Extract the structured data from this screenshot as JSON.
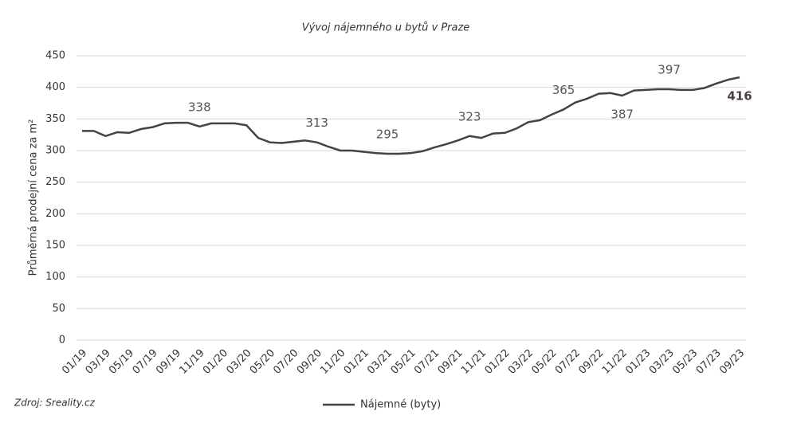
{
  "chart_data": {
    "type": "line",
    "title": "Vývoj nájemného u bytů v Praze",
    "y_label": "Průměrná prodejní cena za m²",
    "source": "Zdroj: Sreality.cz",
    "categories": [
      "01/19",
      null,
      "03/19",
      null,
      "05/19",
      null,
      "07/19",
      null,
      "09/19",
      null,
      "11/19",
      null,
      "01/20",
      null,
      "03/20",
      null,
      "05/20",
      null,
      "07/20",
      null,
      "09/20",
      null,
      "11/20",
      null,
      "01/21",
      null,
      "03/21",
      null,
      "05/21",
      null,
      "07/21",
      null,
      "09/21",
      null,
      "11/21",
      null,
      "01/22",
      null,
      "03/22",
      null,
      "05/22",
      null,
      "07/22",
      null,
      "09/22",
      null,
      "11/22",
      null,
      "01/23",
      null,
      "03/23",
      null,
      "05/23",
      null,
      "07/23",
      null,
      "09/23"
    ],
    "series": [
      {
        "name": "Nájemné (byty)",
        "color": "#4a3f45",
        "values": [
          331,
          331,
          323,
          329,
          328,
          334,
          337,
          343,
          344,
          344,
          338,
          343,
          343,
          343,
          340,
          320,
          313,
          312,
          314,
          316,
          313,
          306,
          300,
          300,
          298,
          296,
          295,
          295,
          296,
          299,
          305,
          310,
          316,
          323,
          320,
          327,
          328,
          335,
          345,
          348,
          357,
          365,
          376,
          382,
          390,
          391,
          387,
          395,
          396,
          397,
          397,
          396,
          396,
          399,
          406,
          412,
          416
        ],
        "value_labels": [
          null,
          null,
          null,
          null,
          null,
          null,
          null,
          null,
          null,
          null,
          "338",
          null,
          null,
          null,
          null,
          null,
          null,
          null,
          null,
          null,
          "313",
          null,
          null,
          null,
          null,
          null,
          "295",
          null,
          null,
          null,
          null,
          null,
          null,
          "323",
          null,
          null,
          null,
          null,
          null,
          null,
          null,
          "365",
          null,
          null,
          null,
          null,
          "387",
          null,
          null,
          null,
          "397",
          null,
          null,
          null,
          null,
          null,
          "416"
        ]
      }
    ],
    "ylim": [
      0,
      450
    ],
    "yticks": [
      0,
      50,
      100,
      150,
      200,
      250,
      300,
      350,
      400,
      450
    ],
    "grid": true,
    "legend": "bottom"
  }
}
